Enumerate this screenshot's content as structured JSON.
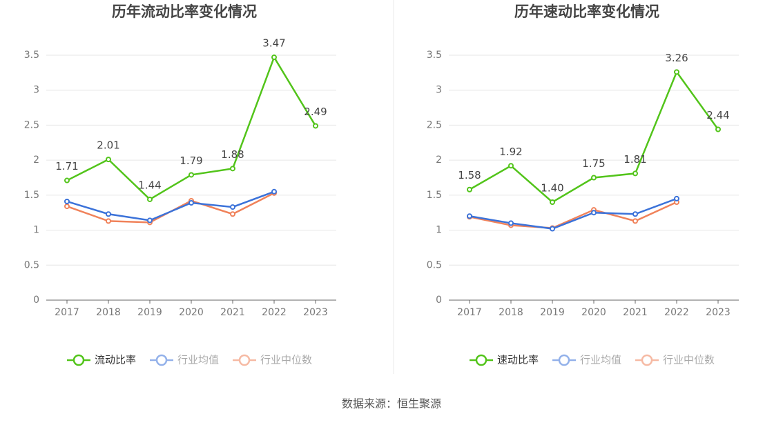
{
  "chart_data": [
    {
      "type": "line",
      "title": "历年流动比率变化情况",
      "categories": [
        "2017",
        "2018",
        "2019",
        "2020",
        "2021",
        "2022",
        "2023"
      ],
      "series": [
        {
          "name": "流动比率",
          "color": "#52c41a",
          "values": [
            1.71,
            2.01,
            1.44,
            1.79,
            1.88,
            3.47,
            2.49
          ]
        },
        {
          "name": "行业均值",
          "color": "#3b72d9",
          "values": [
            1.41,
            1.23,
            1.14,
            1.39,
            1.33,
            1.55,
            null
          ]
        },
        {
          "name": "行业中位数",
          "color": "#f0825a",
          "values": [
            1.34,
            1.13,
            1.11,
            1.42,
            1.23,
            1.53,
            null
          ]
        }
      ],
      "ylim": [
        0,
        3.5
      ],
      "yticks": [
        0,
        0.5,
        1,
        1.5,
        2,
        2.5,
        3,
        3.5
      ],
      "grid": true
    },
    {
      "type": "line",
      "title": "历年速动比率变化情况",
      "categories": [
        "2017",
        "2018",
        "2019",
        "2020",
        "2021",
        "2022",
        "2023"
      ],
      "series": [
        {
          "name": "速动比率",
          "color": "#52c41a",
          "values": [
            1.58,
            1.92,
            1.4,
            1.75,
            1.81,
            3.26,
            2.44
          ],
          "value_labels": [
            "1.58",
            "1.92",
            "1.40",
            "1.75",
            "1.81",
            "3.26",
            "2.44"
          ]
        },
        {
          "name": "行业均值",
          "color": "#3b72d9",
          "values": [
            1.2,
            1.1,
            1.02,
            1.25,
            1.23,
            1.45,
            null
          ]
        },
        {
          "name": "行业中位数",
          "color": "#f0825a",
          "values": [
            1.19,
            1.07,
            1.03,
            1.29,
            1.13,
            1.4,
            null
          ]
        }
      ],
      "ylim": [
        0,
        3.5
      ],
      "yticks": [
        0,
        0.5,
        1,
        1.5,
        2,
        2.5,
        3,
        3.5
      ],
      "grid": true
    }
  ],
  "source": "数据来源：恒生聚源"
}
